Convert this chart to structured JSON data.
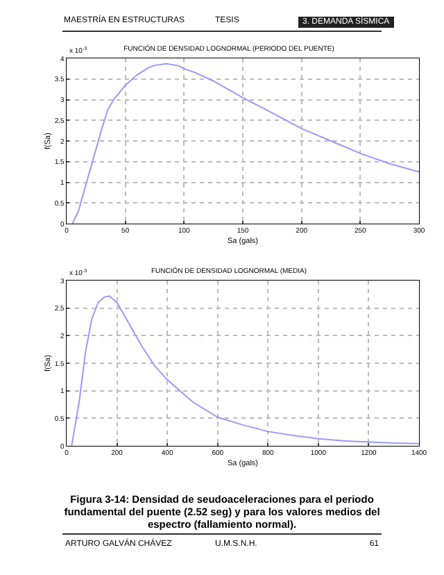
{
  "chart_data": [
    {
      "type": "line",
      "title": "FUNCIÓN DE DENSIDAD LOGNORMAL (PERIODO DEL PUENTE)",
      "xlabel": "Sa (gals)",
      "ylabel": "f(Sa)",
      "annotations": [
        "MAESTRÍA EN ESTRUCTURAS",
        "TESIS",
        "3. DEMANDA SÍSMICA",
        "x 10$^{-3}$"
      ],
      "x": [
        5,
        10,
        15,
        20,
        25,
        30,
        35,
        40,
        50,
        60,
        70,
        75,
        85,
        95,
        100,
        110,
        125,
        150,
        175,
        200,
        225,
        250,
        275,
        300
      ],
      "series": [
        {
          "color": "#9999ff",
          "values": [
            0,
            0.3,
            0.8,
            1.3,
            1.8,
            2.3,
            2.75,
            3.0,
            3.35,
            3.6,
            3.78,
            3.83,
            3.87,
            3.82,
            3.75,
            3.65,
            3.45,
            3.05,
            2.68,
            2.3,
            2.0,
            1.7,
            1.45,
            1.25
          ]
        }
      ],
      "xlim": [
        0,
        300
      ],
      "xticks": [
        0,
        50,
        100,
        150,
        200,
        250,
        300
      ],
      "ylim": [
        0,
        4
      ],
      "yticks": [
        0,
        0.5,
        1,
        1.5,
        2,
        2.5,
        3,
        3.5,
        4
      ],
      "grid": true,
      "marker": "none",
      "line_style": "solid"
    },
    {
      "type": "line",
      "title": "FUNCIÓN DE DENSIDAD LOGNORMAL (MEDIA)",
      "xlabel": "Sa (gals)",
      "ylabel": "f(Sa)",
      "annotations": [
        "x 10$^{-3}$",
        "Figura 3-14: Densidad de seudoaceleraciones para el periodo fundamental del puente (2.52 seg) y para los valores medios del espectro (fallamiento normal).",
        "ARTURO GALVÁN CHÁVEZ",
        "U.M.S.N.H.",
        "61"
      ],
      "x": [
        20,
        50,
        75,
        100,
        125,
        150,
        170,
        200,
        250,
        300,
        350,
        400,
        500,
        600,
        700,
        800,
        900,
        1000,
        1100,
        1200,
        1300,
        1400
      ],
      "series": [
        {
          "color": "#9999ff",
          "values": [
            0,
            0.8,
            1.7,
            2.3,
            2.6,
            2.7,
            2.72,
            2.6,
            2.2,
            1.8,
            1.45,
            1.2,
            0.8,
            0.52,
            0.38,
            0.26,
            0.19,
            0.13,
            0.09,
            0.07,
            0.05,
            0.04
          ]
        }
      ],
      "xlim": [
        0,
        1400
      ],
      "xticks": [
        0,
        200,
        400,
        600,
        800,
        1000,
        1200,
        1400
      ],
      "ylim": [
        0,
        3
      ],
      "yticks": [
        0,
        0.5,
        1,
        1.5,
        2,
        2.5,
        3
      ],
      "grid": true,
      "marker": "none",
      "line_style": "solid"
    }
  ]
}
